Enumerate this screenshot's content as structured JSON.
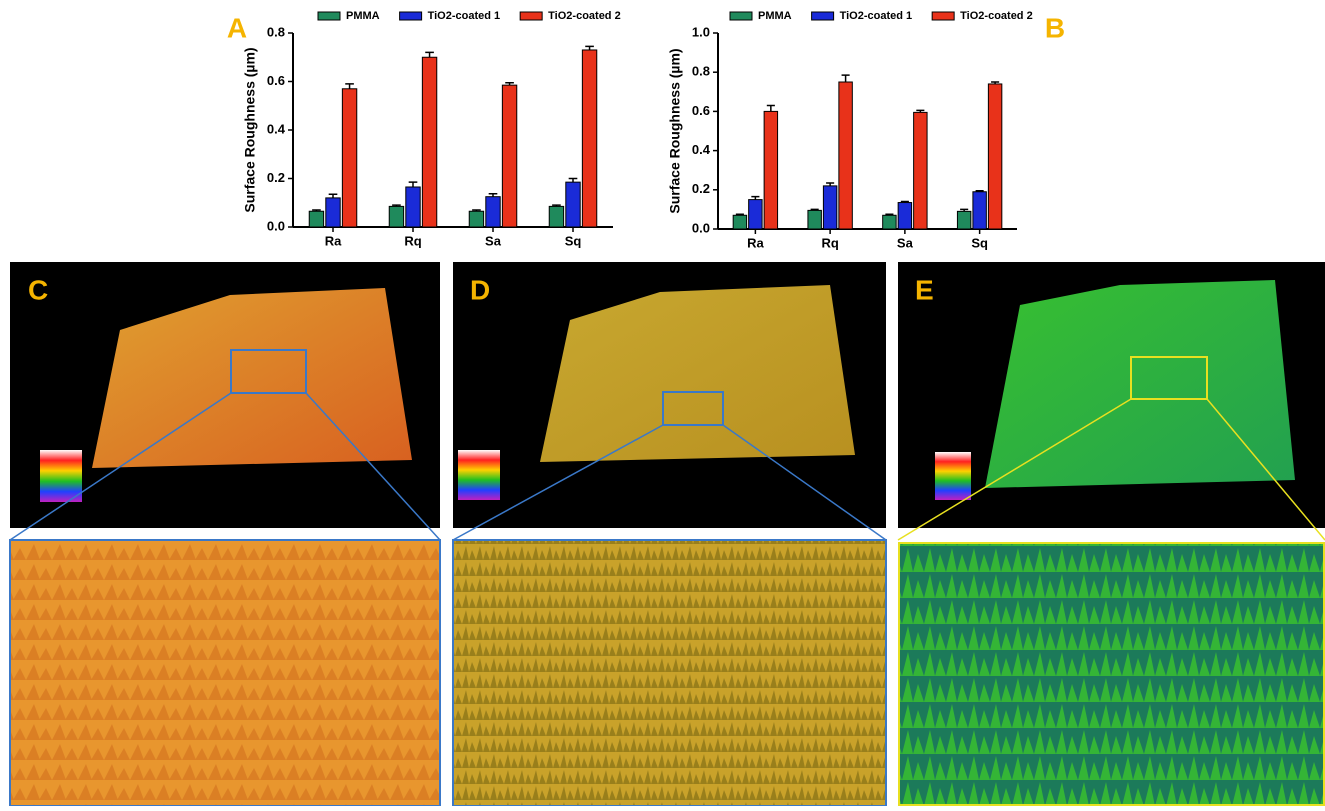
{
  "chart_data": [
    {
      "type": "bar",
      "label": "A",
      "ylabel": "Surface Roughness (µm)",
      "categories": [
        "Ra",
        "Rq",
        "Sa",
        "Sq"
      ],
      "ylim": [
        0,
        0.8
      ],
      "yticks": [
        {
          "value": 0,
          "label": "0.0"
        },
        0.2,
        0.4,
        0.6,
        0.8
      ],
      "series": [
        {
          "name": "PMMA",
          "color": "#1f8a5c",
          "values": [
            0.065,
            0.085,
            0.065,
            0.085
          ],
          "errors": [
            0.005,
            0.005,
            0.005,
            0.005
          ]
        },
        {
          "name": "TiO2-coated 1",
          "color": "#1a2bd8",
          "values": [
            0.12,
            0.165,
            0.125,
            0.185
          ],
          "errors": [
            0.015,
            0.02,
            0.012,
            0.015
          ]
        },
        {
          "name": "TiO2-coated 2",
          "color": "#e8321a",
          "values": [
            0.57,
            0.7,
            0.585,
            0.73
          ],
          "errors": [
            0.02,
            0.02,
            0.01,
            0.015
          ]
        }
      ]
    },
    {
      "type": "bar",
      "label": "B",
      "ylabel": "Surface Roughness (µm)",
      "categories": [
        "Ra",
        "Rq",
        "Sa",
        "Sq"
      ],
      "ylim": [
        0,
        1.0
      ],
      "yticks": [
        {
          "value": 0,
          "label": "0.0"
        },
        0.2,
        0.4,
        0.6,
        0.8,
        {
          "value": 1,
          "label": "1.0"
        }
      ],
      "series": [
        {
          "name": "PMMA",
          "color": "#1f8a5c",
          "values": [
            0.07,
            0.095,
            0.07,
            0.09
          ],
          "errors": [
            0.005,
            0.005,
            0.005,
            0.01
          ]
        },
        {
          "name": "TiO2-coated 1",
          "color": "#1a2bd8",
          "values": [
            0.15,
            0.22,
            0.135,
            0.19
          ],
          "errors": [
            0.015,
            0.015,
            0.005,
            0.005
          ]
        },
        {
          "name": "TiO2-coated 2",
          "color": "#e8321a",
          "values": [
            0.6,
            0.75,
            0.595,
            0.74
          ],
          "errors": [
            0.03,
            0.035,
            0.01,
            0.01
          ]
        }
      ]
    }
  ],
  "images": [
    {
      "label": "C"
    },
    {
      "label": "D"
    },
    {
      "label": "E"
    }
  ]
}
